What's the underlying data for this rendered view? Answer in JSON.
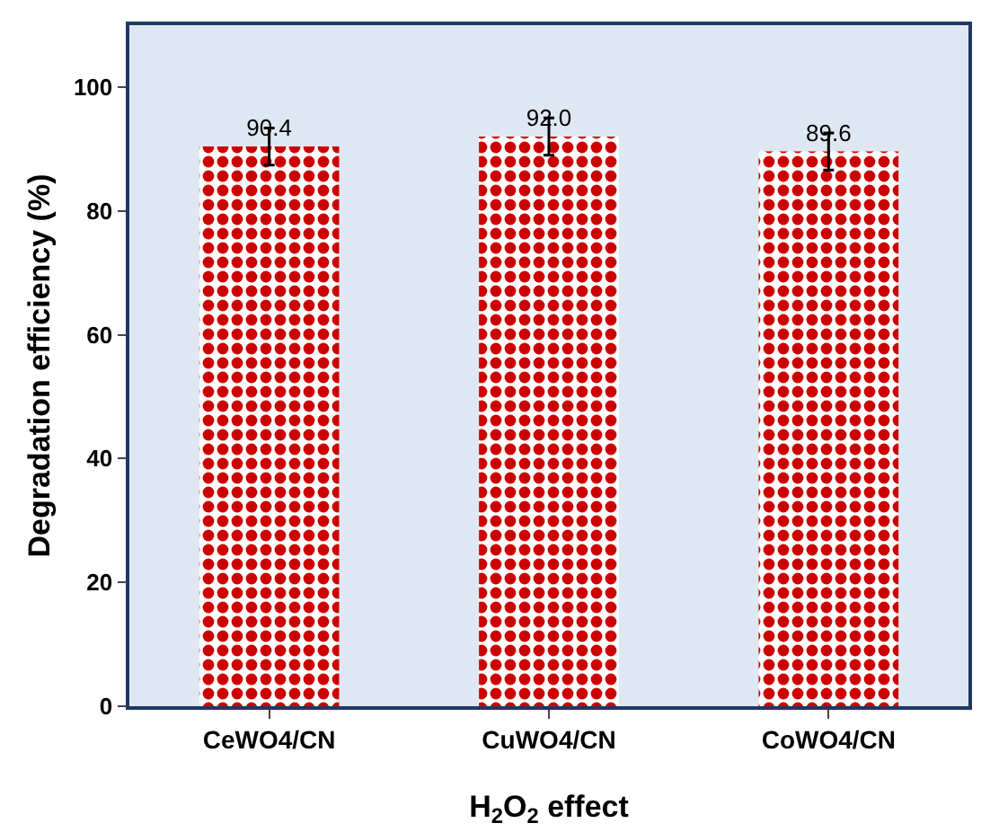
{
  "chart_data": {
    "type": "bar",
    "xlabel": "H$_{2}$O$_{2}$ effect",
    "ylabel": "Degradation efficiency (%)",
    "categories": [
      "CeWO4/CN",
      "CuWO4/CN",
      "CoWO4/CN"
    ],
    "values": [
      90.4,
      92.0,
      89.6
    ],
    "errors": [
      3,
      3,
      3
    ],
    "color": "#cc0000",
    "data_labels": true,
    "value_labels": [
      "90.4",
      "92.0",
      "89.6"
    ],
    "ylim": [
      0,
      110
    ],
    "yticks": [
      0,
      20,
      40,
      60,
      80,
      100
    ],
    "grid": false,
    "legend": false
  }
}
